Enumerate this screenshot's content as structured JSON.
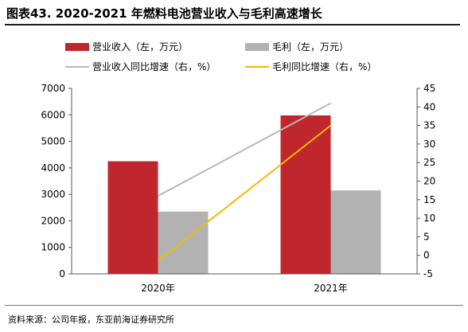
{
  "title": "图表43. 2020-2021 年燃料电池营业收入与毛利高速增长",
  "source": "资料来源：公司年报，东亚前海证券研究所",
  "colors": {
    "revenue_bar": "#c0272d",
    "profit_bar": "#b2b2b2",
    "revenue_growth_line": "#b8b8b8",
    "profit_growth_line": "#f5b800"
  },
  "chart_data": {
    "type": "bar",
    "categories": [
      "2020年",
      "2021年"
    ],
    "series": [
      {
        "name": "营业收入（左，万元）",
        "kind": "bar",
        "axis": "left",
        "values": [
          4250,
          5980
        ]
      },
      {
        "name": "毛利（左，万元）",
        "kind": "bar",
        "axis": "left",
        "values": [
          2350,
          3150
        ]
      },
      {
        "name": "营业收入同比增速（右，%）",
        "kind": "line",
        "axis": "right",
        "values": [
          16,
          41
        ]
      },
      {
        "name": "毛利同比增速（右，%）",
        "kind": "line",
        "axis": "right",
        "values": [
          -1.5,
          35
        ]
      }
    ],
    "y_left": {
      "min": 0,
      "max": 7000,
      "ticks": [
        0,
        1000,
        2000,
        3000,
        4000,
        5000,
        6000,
        7000
      ]
    },
    "y_right": {
      "min": -5,
      "max": 45,
      "ticks": [
        -5,
        0,
        5,
        10,
        15,
        20,
        25,
        30,
        35,
        40,
        45
      ]
    },
    "grid": false,
    "legend_position": "top"
  }
}
